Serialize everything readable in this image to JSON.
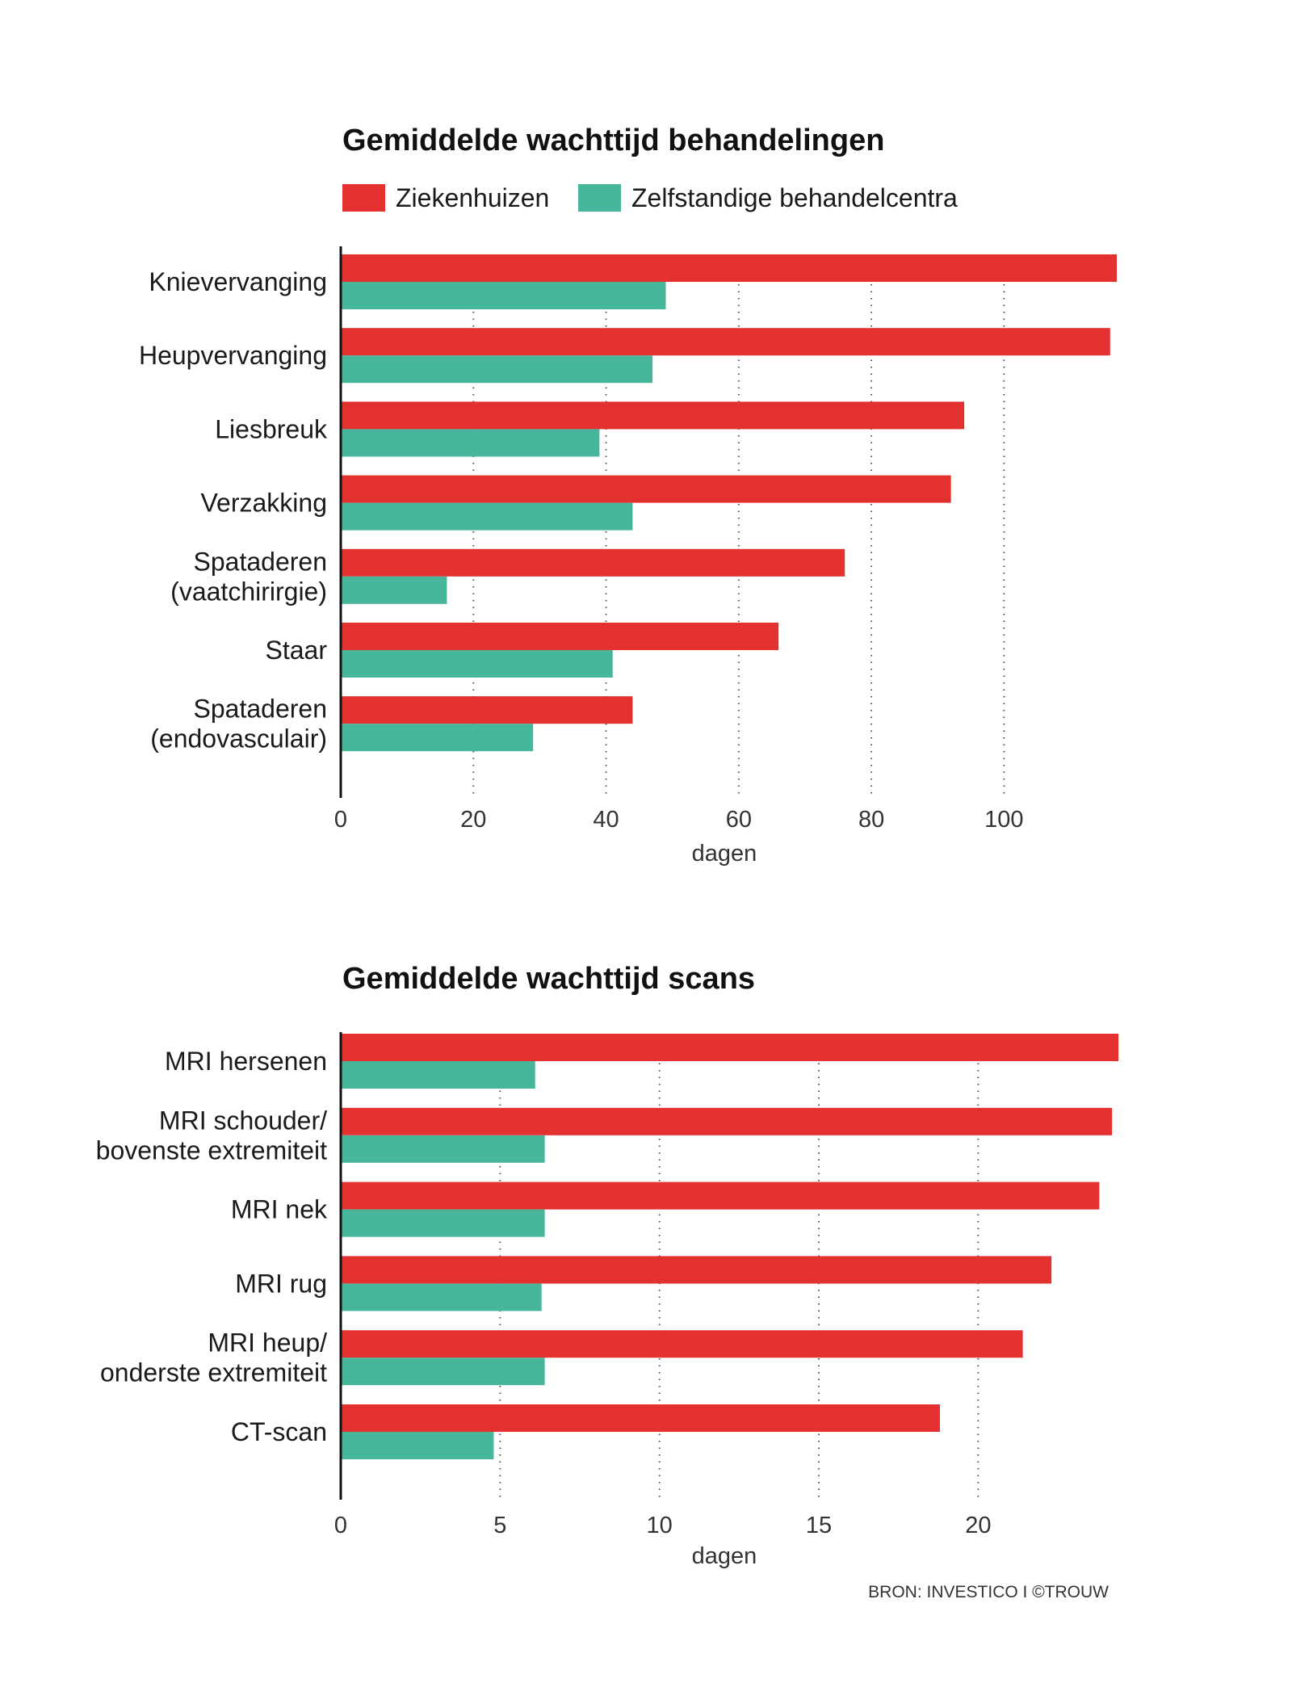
{
  "colors": {
    "ziekenhuizen": "#e3312f",
    "zbc": "#47b69a",
    "axis": "#111111",
    "grid": "#555555"
  },
  "legend": {
    "ziekenhuizen": "Ziekenhuizen",
    "zbc": "Zelfstandige behandelcentra"
  },
  "source": "BRON: INVESTICO I ©TROUW",
  "chart_data": [
    {
      "type": "bar",
      "orientation": "horizontal",
      "title": "Gemiddelde wachttijd behandelingen",
      "xlabel": "dagen",
      "xlim": [
        0,
        117
      ],
      "xticks": [
        0,
        20,
        40,
        60,
        80,
        100
      ],
      "grid": true,
      "categories": [
        [
          "Knievervanging"
        ],
        [
          "Heupvervanging"
        ],
        [
          "Liesbreuk"
        ],
        [
          "Verzakking"
        ],
        [
          "Spataderen",
          "(vaatchirirgie)"
        ],
        [
          "Staar"
        ],
        [
          "Spataderen",
          "(endovasculair)"
        ]
      ],
      "series": [
        {
          "name": "Ziekenhuizen",
          "values": [
            117,
            116,
            94,
            92,
            76,
            66,
            44
          ]
        },
        {
          "name": "Zelfstandige behandelcentra",
          "values": [
            49,
            47,
            39,
            44,
            16,
            41,
            29
          ]
        }
      ]
    },
    {
      "type": "bar",
      "orientation": "horizontal",
      "title": "Gemiddelde wachttijd scans",
      "xlabel": "dagen",
      "xlim": [
        0,
        24.4
      ],
      "xticks": [
        0,
        5,
        10,
        15,
        20
      ],
      "grid": true,
      "categories": [
        [
          "MRI hersenen"
        ],
        [
          "MRI schouder/",
          "bovenste extremiteit"
        ],
        [
          "MRI nek"
        ],
        [
          "MRI rug"
        ],
        [
          "MRI heup/",
          "onderste extremiteit"
        ],
        [
          "CT-scan"
        ]
      ],
      "series": [
        {
          "name": "Ziekenhuizen",
          "values": [
            24.4,
            24.2,
            23.8,
            22.3,
            21.4,
            18.8
          ]
        },
        {
          "name": "Zelfstandige behandelcentra",
          "values": [
            6.1,
            6.4,
            6.4,
            6.3,
            6.4,
            4.8
          ]
        }
      ]
    }
  ]
}
